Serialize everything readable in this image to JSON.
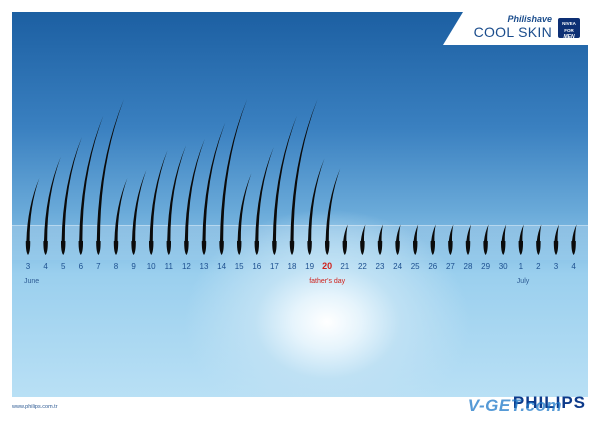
{
  "brand": {
    "product_line": "Philishave",
    "product_name": "COOL SKIN",
    "partner_line1": "NIVEA",
    "partner_line2": "FOR",
    "partner_line3": "MEN"
  },
  "calendar": {
    "days": [
      "3",
      "4",
      "5",
      "6",
      "7",
      "8",
      "9",
      "10",
      "11",
      "12",
      "13",
      "14",
      "15",
      "16",
      "17",
      "18",
      "19",
      "20",
      "21",
      "22",
      "23",
      "24",
      "25",
      "26",
      "27",
      "28",
      "29",
      "30",
      "1",
      "2",
      "3",
      "4"
    ],
    "highlight_index": 17,
    "hair_heights": [
      0.38,
      0.51,
      0.63,
      0.76,
      0.86,
      0.38,
      0.43,
      0.55,
      0.58,
      0.62,
      0.72,
      0.86,
      0.41,
      0.57,
      0.76,
      0.86,
      0.5,
      0.44,
      0.1,
      0.1,
      0.1,
      0.1,
      0.1,
      0.1,
      0.1,
      0.1,
      0.1,
      0.1,
      0.1,
      0.1,
      0.1,
      0.1
    ],
    "month_start": "June",
    "month_start_index": 0,
    "month_next": "July",
    "month_next_index": 28,
    "event_label": "father's day"
  },
  "footer": {
    "url": "www.philips.com.tr",
    "logo": "PHILIPS",
    "watermark": "V-GET.com"
  },
  "colors": {
    "hair": "#0b0b0b",
    "text_blue": "#1c4f8f",
    "highlight_red": "#d0211b"
  }
}
